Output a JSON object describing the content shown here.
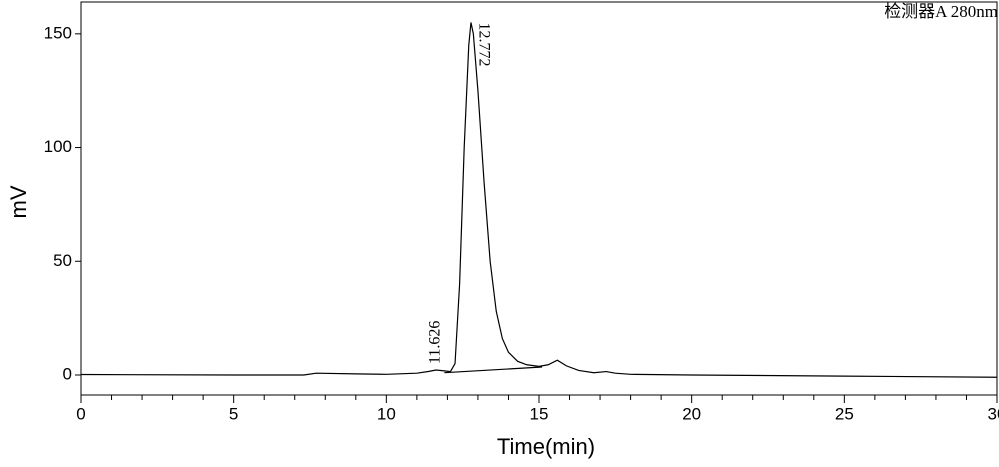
{
  "chart_data": {
    "type": "line",
    "x_label": "Time(min)",
    "y_label": "mV",
    "detector_label": "检测器A 280nm",
    "xlim": [
      0,
      30
    ],
    "ylim": [
      -8.8,
      164
    ],
    "xticks": [
      0,
      5,
      10,
      15,
      20,
      25,
      30
    ],
    "xminor_ticks": [
      1,
      2,
      3,
      4,
      6,
      7,
      8,
      9,
      11,
      12,
      13,
      14,
      16,
      17,
      18,
      19,
      21,
      22,
      23,
      24,
      26,
      27,
      28,
      29
    ],
    "yticks": [
      0,
      50,
      100,
      150
    ],
    "series": [
      {
        "color": "#000000",
        "x": [
          0,
          5,
          7.3,
          7.7,
          9,
          10,
          11,
          11.4,
          11.626,
          11.9,
          12.1,
          12.25,
          12.4,
          12.55,
          12.7,
          12.772,
          12.85,
          13.0,
          13.2,
          13.4,
          13.6,
          13.8,
          14.0,
          14.3,
          14.6,
          15.0,
          15.3,
          15.6,
          15.9,
          16.3,
          16.8,
          17.2,
          17.5,
          18,
          20,
          25,
          30
        ],
        "values": [
          0.2,
          0,
          0,
          0.8,
          0.5,
          0.3,
          0.8,
          1.6,
          2.2,
          1.8,
          1.5,
          5,
          40,
          100,
          145,
          155,
          150,
          125,
          85,
          50,
          28,
          16,
          10,
          6,
          4.5,
          3.8,
          4.5,
          6.5,
          4,
          2,
          1,
          1.5,
          0.8,
          0.3,
          0,
          -0.5,
          -1
        ]
      },
      {
        "color": "#000000",
        "x": [
          11.9,
          15.1
        ],
        "values": [
          1.0,
          3.5
        ]
      }
    ],
    "annotations": [
      {
        "text": "11.626",
        "x": 11.626
      },
      {
        "text": "12.772",
        "x": 12.772
      }
    ]
  }
}
